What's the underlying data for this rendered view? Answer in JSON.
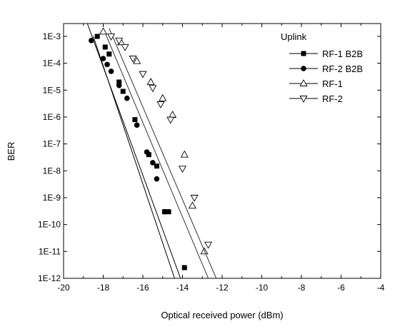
{
  "chart_data": {
    "type": "line",
    "title": "",
    "xlabel": "Optical received power (dBm)",
    "ylabel": "BER",
    "xlim": [
      -20,
      -4
    ],
    "ylim": [
      1e-12,
      0.003
    ],
    "yscale": "log",
    "x_ticks": [
      -20,
      -18,
      -16,
      -14,
      -12,
      -10,
      -8,
      -6,
      -4
    ],
    "x_tick_labels": [
      "-20",
      "-18",
      "-16",
      "-14",
      "-12",
      "-10",
      "-8",
      "-6",
      "-4"
    ],
    "y_ticks": [
      0.001,
      0.0001,
      1e-05,
      1e-06,
      1e-07,
      1e-08,
      1e-09,
      1e-10,
      1e-11,
      1e-12
    ],
    "y_tick_labels": [
      "1E-3",
      "1E-4",
      "1E-5",
      "1E-6",
      "1E-7",
      "1E-8",
      "1E-9",
      "1E-10",
      "1E-11",
      "1E-12"
    ],
    "grid": false,
    "legend": {
      "title": "Uplink",
      "placement": "top-right"
    },
    "series": [
      {
        "name": "RF-1 B2B",
        "marker": "filled-square",
        "x": [
          -18.3,
          -17.9,
          -17.7,
          -17.2,
          -17.0,
          -16.4,
          -15.7,
          -15.3,
          -14.9,
          -14.7,
          -13.9
        ],
        "y": [
          0.001,
          0.0004,
          0.00022,
          2e-05,
          9e-06,
          8e-07,
          4e-08,
          1.5e-08,
          3e-10,
          3e-10,
          2.5e-12
        ],
        "fit_x": [
          -18.8,
          -14.1
        ],
        "fit_y": [
          0.003,
          1e-12
        ]
      },
      {
        "name": "RF-2 B2B",
        "marker": "filled-circle",
        "x": [
          -18.6,
          -18.0,
          -17.8,
          -17.6,
          -17.2,
          -16.8,
          -16.3,
          -15.8,
          -15.5,
          -15.3,
          -14.9
        ],
        "y": [
          0.0007,
          0.00015,
          9e-05,
          5e-05,
          1.5e-05,
          5e-06,
          5e-07,
          5e-08,
          2e-08,
          5e-09,
          3e-10
        ],
        "fit_x": [
          -18.5,
          -14.4
        ],
        "fit_y": [
          0.001,
          1e-12
        ]
      },
      {
        "name": "RF-1",
        "marker": "open-triangle-up",
        "x": [
          -18.0,
          -17.1,
          -16.3,
          -15.6,
          -15.0,
          -14.5,
          -13.9,
          -13.5,
          -12.9
        ],
        "y": [
          0.0015,
          0.0006,
          0.00012,
          2e-05,
          5e-06,
          1.2e-06,
          4e-08,
          5e-10,
          1e-11
        ],
        "fit_x": [
          -18.0,
          -12.7
        ],
        "fit_y": [
          0.002,
          1e-12
        ]
      },
      {
        "name": "RF-2",
        "marker": "open-triangle-down",
        "x": [
          -17.6,
          -17.2,
          -16.9,
          -16.5,
          -16.0,
          -15.5,
          -15.1,
          -14.6,
          -14.0,
          -13.4,
          -12.7
        ],
        "y": [
          0.001,
          0.0007,
          0.0004,
          0.00015,
          4e-05,
          1.2e-05,
          3e-06,
          8e-07,
          1.2e-08,
          1e-09,
          1.8e-11
        ],
        "fit_x": [
          -17.7,
          -12.3
        ],
        "fit_y": [
          0.002,
          1e-12
        ]
      }
    ]
  }
}
